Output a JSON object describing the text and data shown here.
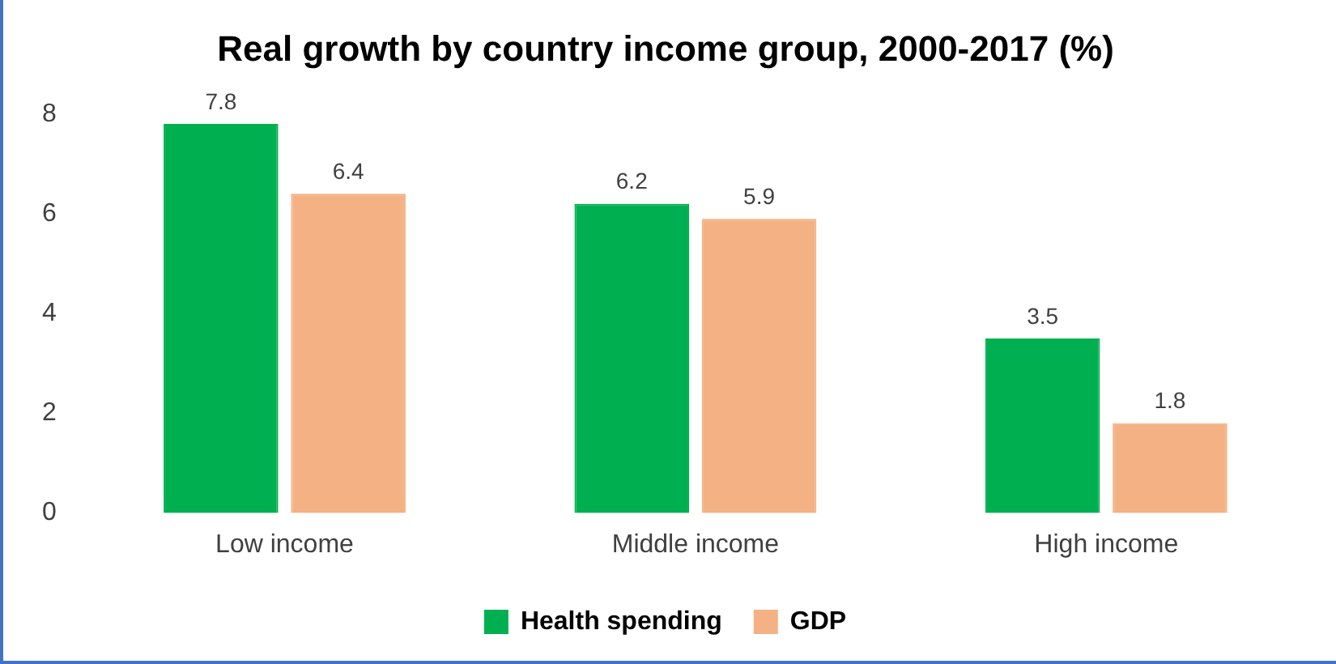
{
  "chart_data": {
    "type": "bar",
    "title": "Real growth by country income group, 2000-2017 (%)",
    "categories": [
      "Low income",
      "Middle income",
      "High income"
    ],
    "series": [
      {
        "name": "Health spending",
        "color": "#00b050",
        "values": [
          7.8,
          6.2,
          3.5
        ]
      },
      {
        "name": "GDP",
        "color": "#f4b183",
        "values": [
          6.4,
          5.9,
          1.8
        ]
      }
    ],
    "ylim": [
      0,
      8
    ],
    "yticks": [
      0,
      2,
      4,
      6,
      8
    ],
    "grid": false,
    "legend": "bottom",
    "data_labels": true
  }
}
